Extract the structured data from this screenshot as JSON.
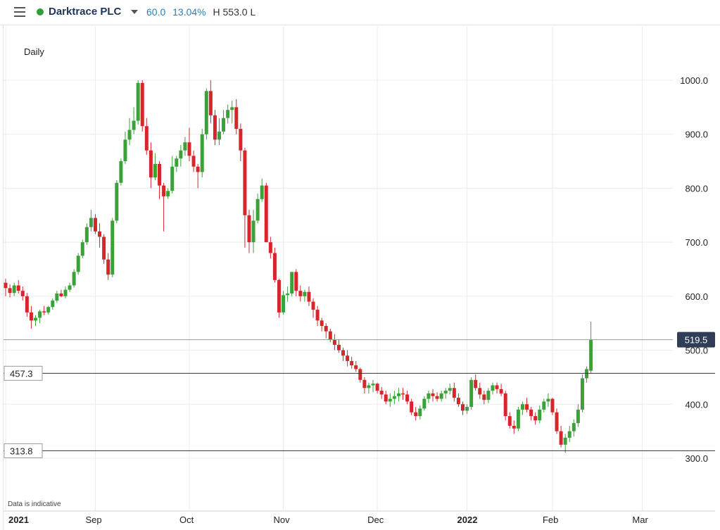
{
  "header": {
    "menu_icon": "hamburger-menu-icon",
    "status_color": "#2e9e3a",
    "ticker": "Darktrace PLC",
    "change": "60.0",
    "change_pct": "13.04%",
    "high_low": "H 553.0  L"
  },
  "period_label": "Daily",
  "disclaimer": "Data is indicative",
  "chart_data": {
    "type": "candlestick",
    "title": "",
    "xlabel": "",
    "ylabel": "",
    "ylim": [
      280,
      1050
    ],
    "y_ticks": [
      300.0,
      400.0,
      500.0,
      600.0,
      700.0,
      800.0,
      900.0,
      1000.0
    ],
    "x_tick_labels": [
      "2021",
      "Sep",
      "Oct",
      "Nov",
      "Dec",
      "2022",
      "Feb",
      "Mar"
    ],
    "x_tick_index": [
      0,
      21,
      43,
      65,
      87,
      108,
      128,
      149
    ],
    "grid": true,
    "current_price": 519.5,
    "horizontal_lines": [
      457.3,
      313.8
    ],
    "colors": {
      "up": "#3ba23a",
      "down": "#d7262b"
    },
    "candles": [
      [
        625,
        632,
        600,
        615
      ],
      [
        615,
        622,
        598,
        606
      ],
      [
        606,
        625,
        600,
        620
      ],
      [
        620,
        630,
        605,
        610
      ],
      [
        610,
        618,
        592,
        600
      ],
      [
        600,
        606,
        562,
        570
      ],
      [
        570,
        582,
        540,
        555
      ],
      [
        555,
        565,
        545,
        560
      ],
      [
        560,
        575,
        550,
        572
      ],
      [
        572,
        582,
        565,
        570
      ],
      [
        570,
        582,
        566,
        580
      ],
      [
        580,
        596,
        575,
        592
      ],
      [
        592,
        610,
        588,
        605
      ],
      [
        605,
        612,
        598,
        600
      ],
      [
        600,
        618,
        596,
        612
      ],
      [
        612,
        625,
        608,
        620
      ],
      [
        620,
        650,
        616,
        645
      ],
      [
        645,
        680,
        640,
        675
      ],
      [
        675,
        705,
        670,
        700
      ],
      [
        700,
        735,
        695,
        728
      ],
      [
        728,
        760,
        720,
        745
      ],
      [
        745,
        752,
        715,
        720
      ],
      [
        720,
        735,
        690,
        710
      ],
      [
        710,
        715,
        660,
        668
      ],
      [
        668,
        680,
        630,
        640
      ],
      [
        640,
        745,
        635,
        740
      ],
      [
        740,
        815,
        735,
        810
      ],
      [
        810,
        855,
        805,
        850
      ],
      [
        850,
        905,
        845,
        890
      ],
      [
        890,
        930,
        880,
        908
      ],
      [
        908,
        950,
        900,
        925
      ],
      [
        925,
        1000,
        918,
        995
      ],
      [
        995,
        1000,
        905,
        915
      ],
      [
        915,
        930,
        862,
        870
      ],
      [
        870,
        885,
        800,
        820
      ],
      [
        820,
        865,
        815,
        845
      ],
      [
        845,
        850,
        780,
        805
      ],
      [
        805,
        810,
        720,
        785
      ],
      [
        785,
        800,
        780,
        795
      ],
      [
        795,
        860,
        790,
        840
      ],
      [
        840,
        860,
        830,
        855
      ],
      [
        855,
        880,
        840,
        870
      ],
      [
        870,
        895,
        860,
        885
      ],
      [
        885,
        912,
        850,
        860
      ],
      [
        860,
        870,
        830,
        840
      ],
      [
        840,
        845,
        800,
        830
      ],
      [
        830,
        910,
        820,
        900
      ],
      [
        900,
        985,
        890,
        980
      ],
      [
        980,
        1000,
        920,
        935
      ],
      [
        935,
        945,
        880,
        890
      ],
      [
        890,
        930,
        880,
        905
      ],
      [
        905,
        945,
        900,
        930
      ],
      [
        930,
        955,
        920,
        945
      ],
      [
        945,
        962,
        920,
        950
      ],
      [
        950,
        965,
        900,
        910
      ],
      [
        910,
        920,
        850,
        870
      ],
      [
        870,
        875,
        690,
        750
      ],
      [
        750,
        760,
        680,
        700
      ],
      [
        700,
        760,
        680,
        740
      ],
      [
        740,
        790,
        735,
        780
      ],
      [
        780,
        818,
        775,
        805
      ],
      [
        805,
        810,
        700,
        700
      ],
      [
        700,
        710,
        670,
        680
      ],
      [
        680,
        690,
        625,
        630
      ],
      [
        630,
        632,
        560,
        570
      ],
      [
        570,
        610,
        566,
        602
      ],
      [
        602,
        618,
        590,
        605
      ],
      [
        605,
        640,
        600,
        645
      ],
      [
        645,
        650,
        600,
        610
      ],
      [
        610,
        620,
        590,
        600
      ],
      [
        600,
        612,
        590,
        608
      ],
      [
        608,
        618,
        582,
        590
      ],
      [
        590,
        596,
        560,
        575
      ],
      [
        575,
        582,
        545,
        555
      ],
      [
        555,
        560,
        535,
        545
      ],
      [
        545,
        550,
        522,
        535
      ],
      [
        535,
        540,
        515,
        520
      ],
      [
        520,
        530,
        500,
        510
      ],
      [
        510,
        520,
        495,
        500
      ],
      [
        500,
        505,
        480,
        490
      ],
      [
        490,
        500,
        470,
        480
      ],
      [
        480,
        488,
        466,
        472
      ],
      [
        472,
        480,
        460,
        465
      ],
      [
        465,
        468,
        440,
        445
      ],
      [
        445,
        450,
        420,
        430
      ],
      [
        430,
        440,
        420,
        435
      ],
      [
        435,
        445,
        422,
        438
      ],
      [
        438,
        440,
        420,
        425
      ],
      [
        425,
        432,
        410,
        418
      ],
      [
        418,
        425,
        400,
        405
      ],
      [
        405,
        420,
        395,
        410
      ],
      [
        410,
        425,
        400,
        415
      ],
      [
        415,
        430,
        405,
        420
      ],
      [
        420,
        430,
        408,
        418
      ],
      [
        418,
        425,
        400,
        405
      ],
      [
        405,
        410,
        380,
        385
      ],
      [
        385,
        395,
        370,
        378
      ],
      [
        378,
        398,
        372,
        392
      ],
      [
        392,
        415,
        388,
        410
      ],
      [
        410,
        425,
        402,
        420
      ],
      [
        420,
        428,
        405,
        415
      ],
      [
        415,
        422,
        405,
        410
      ],
      [
        410,
        425,
        405,
        420
      ],
      [
        420,
        430,
        410,
        425
      ],
      [
        425,
        438,
        418,
        430
      ],
      [
        430,
        440,
        405,
        412
      ],
      [
        412,
        420,
        395,
        400
      ],
      [
        400,
        405,
        380,
        388
      ],
      [
        388,
        400,
        382,
        395
      ],
      [
        395,
        450,
        390,
        445
      ],
      [
        445,
        455,
        425,
        430
      ],
      [
        430,
        440,
        410,
        418
      ],
      [
        418,
        425,
        400,
        408
      ],
      [
        408,
        430,
        402,
        425
      ],
      [
        425,
        440,
        418,
        435
      ],
      [
        435,
        440,
        420,
        428
      ],
      [
        428,
        438,
        415,
        420
      ],
      [
        420,
        425,
        370,
        378
      ],
      [
        378,
        385,
        355,
        360
      ],
      [
        360,
        370,
        345,
        355
      ],
      [
        355,
        395,
        350,
        390
      ],
      [
        390,
        405,
        380,
        400
      ],
      [
        400,
        412,
        385,
        390
      ],
      [
        390,
        395,
        370,
        378
      ],
      [
        378,
        385,
        362,
        370
      ],
      [
        370,
        398,
        365,
        390
      ],
      [
        390,
        410,
        385,
        405
      ],
      [
        405,
        420,
        395,
        410
      ],
      [
        410,
        412,
        380,
        385
      ],
      [
        385,
        392,
        345,
        350
      ],
      [
        350,
        360,
        320,
        325
      ],
      [
        325,
        345,
        310,
        338
      ],
      [
        338,
        360,
        330,
        350
      ],
      [
        350,
        372,
        340,
        365
      ],
      [
        365,
        400,
        358,
        390
      ],
      [
        390,
        455,
        385,
        448
      ],
      [
        448,
        470,
        440,
        465
      ],
      [
        462,
        553,
        458,
        519.5
      ]
    ]
  }
}
